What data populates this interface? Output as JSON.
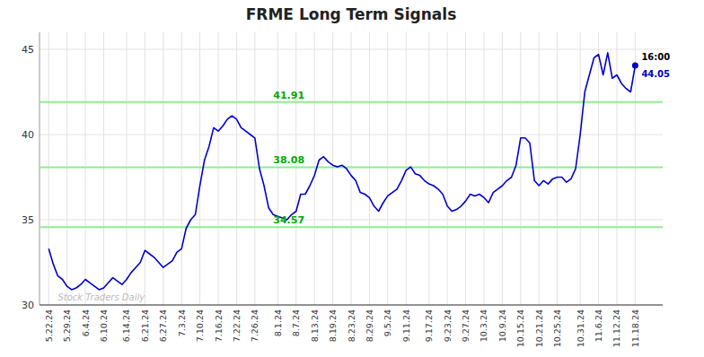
{
  "chart_data": {
    "type": "line",
    "title": "FRME Long Term Signals",
    "grid": true,
    "ylim": [
      30,
      46
    ],
    "yticks": [
      30,
      35,
      40,
      45
    ],
    "categories": [
      "5.22.24",
      null,
      null,
      null,
      "5.29.24",
      null,
      null,
      null,
      "6.4.24",
      null,
      null,
      null,
      "6.10.24",
      null,
      null,
      null,
      null,
      "6.14.24",
      null,
      null,
      null,
      "6.21.24",
      null,
      null,
      null,
      "6.27.24",
      null,
      null,
      null,
      "7.3.24",
      null,
      null,
      null,
      "7.10.24",
      null,
      null,
      null,
      "7.16.24",
      null,
      null,
      null,
      "7.22.24",
      null,
      null,
      null,
      "7.26.24",
      null,
      null,
      null,
      null,
      "8.1.24",
      null,
      null,
      null,
      "8.7.24",
      null,
      null,
      null,
      "8.13.24",
      null,
      null,
      null,
      "8.19.24",
      null,
      null,
      null,
      "8.23.24",
      null,
      null,
      null,
      "8.29.24",
      null,
      null,
      null,
      "9.5.24",
      null,
      null,
      null,
      "9.11.24",
      null,
      null,
      null,
      null,
      "9.17.24",
      null,
      null,
      null,
      "9.23.24",
      null,
      null,
      null,
      "9.27.24",
      null,
      null,
      null,
      "10.3.24",
      null,
      null,
      null,
      "10.9.24",
      null,
      null,
      null,
      "10.15.24",
      null,
      null,
      null,
      "10.21.24",
      null,
      null,
      null,
      "10.25.24",
      null,
      null,
      null,
      null,
      "10.31.24",
      null,
      null,
      null,
      "11.6.24",
      null,
      null,
      null,
      "11.12.24",
      null,
      null,
      null,
      "11.18.24"
    ],
    "series": [
      {
        "color": "#0000cc",
        "values": [
          33.3,
          32.4,
          31.7,
          31.5,
          31.1,
          30.9,
          31.0,
          31.2,
          31.5,
          31.3,
          31.1,
          30.9,
          31.0,
          31.3,
          31.6,
          31.4,
          31.2,
          31.5,
          31.9,
          32.2,
          32.5,
          33.2,
          33.0,
          32.8,
          32.5,
          32.2,
          32.4,
          32.6,
          33.1,
          33.3,
          34.5,
          35.0,
          35.3,
          37.0,
          38.5,
          39.3,
          40.4,
          40.2,
          40.5,
          40.9,
          41.1,
          40.9,
          40.4,
          40.2,
          40.0,
          39.8,
          38.0,
          37.0,
          35.7,
          35.3,
          35.2,
          35.1,
          35.0,
          35.3,
          35.5,
          36.5,
          36.5,
          37.0,
          37.6,
          38.5,
          38.7,
          38.4,
          38.2,
          38.1,
          38.2,
          38.0,
          37.6,
          37.3,
          36.6,
          36.5,
          36.3,
          35.8,
          35.5,
          36.0,
          36.4,
          36.6,
          36.8,
          37.3,
          37.9,
          38.1,
          37.7,
          37.6,
          37.3,
          37.1,
          37.0,
          36.8,
          36.5,
          35.8,
          35.5,
          35.6,
          35.8,
          36.1,
          36.5,
          36.4,
          36.5,
          36.3,
          36.0,
          36.6,
          36.8,
          37.0,
          37.3,
          37.5,
          38.2,
          39.8,
          39.8,
          39.5,
          37.3,
          37.0,
          37.3,
          37.1,
          37.4,
          37.5,
          37.5,
          37.2,
          37.4,
          38.0,
          40.0,
          42.5,
          43.5,
          44.5,
          44.7,
          43.5,
          44.8,
          43.3,
          43.5,
          43.0,
          42.7,
          42.5,
          44.05
        ]
      }
    ],
    "reference_lines": [
      {
        "value": 34.57,
        "label": "34.57",
        "color": "#90ee90"
      },
      {
        "value": 38.08,
        "label": "38.08",
        "color": "#90ee90"
      },
      {
        "value": 41.91,
        "label": "41.91",
        "color": "#90ee90"
      }
    ],
    "watermark": "Stock Traders Daily",
    "end_labels": [
      "16:00",
      "44.05"
    ]
  }
}
